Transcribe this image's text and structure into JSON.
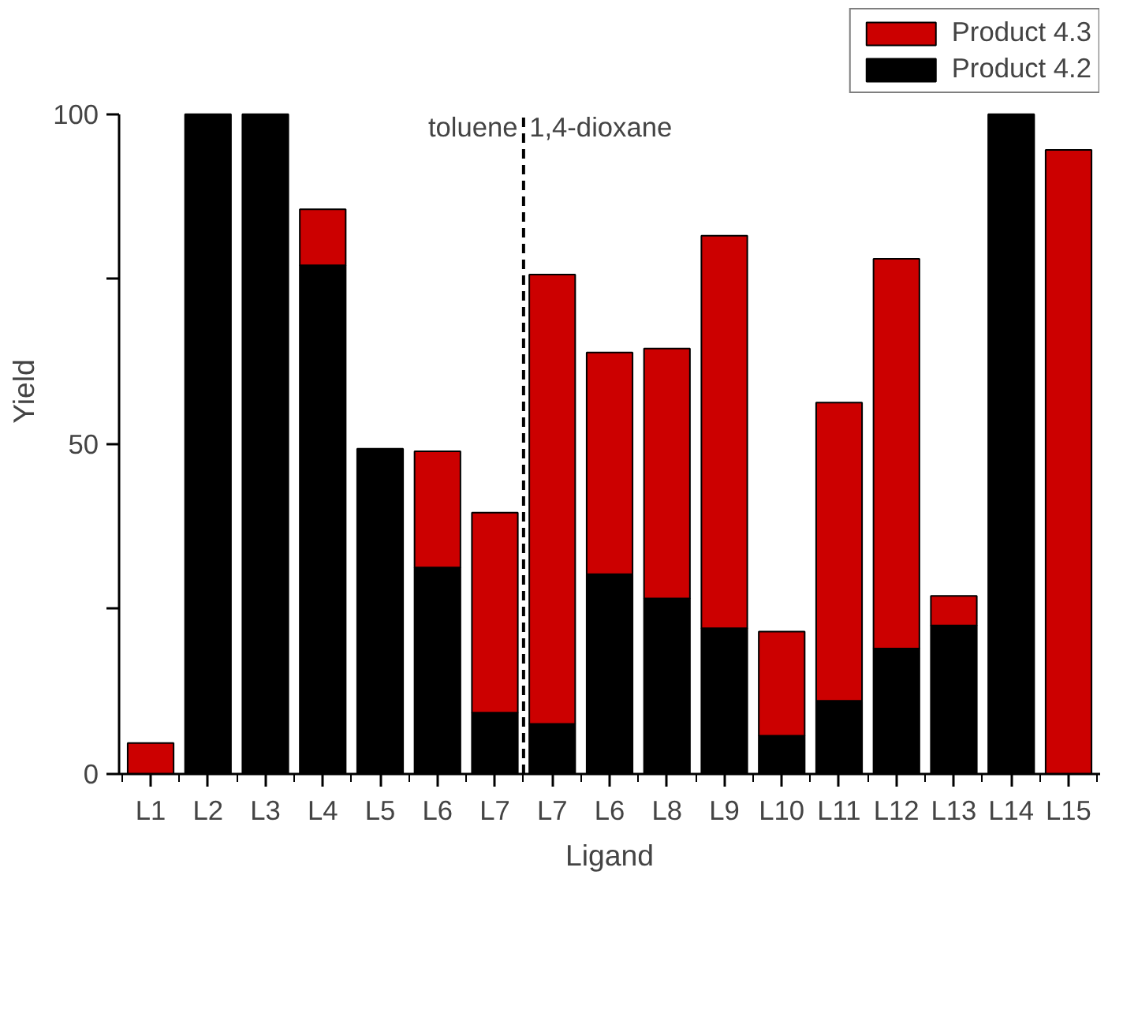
{
  "chart_data": {
    "type": "bar",
    "stacked": true,
    "xlabel": "Ligand",
    "ylabel": "Yield",
    "categories": [
      "L1",
      "L2",
      "L3",
      "L4",
      "L5",
      "L6",
      "L7",
      "L7",
      "L6",
      "L8",
      "L9",
      "L10",
      "L11",
      "L12",
      "L13",
      "L14",
      "L15"
    ],
    "series": [
      {
        "name": "Product 4.2",
        "color": "#000000",
        "values": [
          null,
          100,
          100,
          77.1,
          49.3,
          31.3,
          9.3,
          7.6,
          30.3,
          26.6,
          22.1,
          5.8,
          11.1,
          19.0,
          22.5,
          100,
          null
        ]
      },
      {
        "name": "Product 4.3",
        "color": "#cc0000",
        "values": [
          4.7,
          null,
          null,
          8.5,
          null,
          17.6,
          30.3,
          68.1,
          33.6,
          37.9,
          59.5,
          15.8,
          45.2,
          59.1,
          4.5,
          null,
          94.6
        ]
      }
    ],
    "ylim": [
      0,
      100
    ],
    "yticks": [
      0,
      {
        "value": 25,
        "label": null
      },
      50,
      {
        "value": 75,
        "label": null
      },
      100
    ],
    "annotations": [
      "toluene",
      "1,4-dioxane"
    ],
    "legend": "top right",
    "grid": false
  }
}
